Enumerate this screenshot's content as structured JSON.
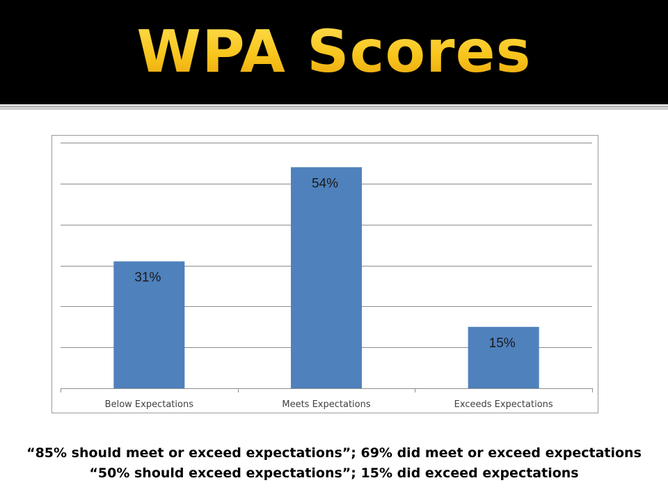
{
  "slide": {
    "title": "WPA Scores",
    "captions": [
      "“85% should meet or exceed expectations”; 69% did meet or exceed expectations",
      "“50% should exceed expectations”; 15% did exceed expectations"
    ],
    "colors": {
      "title": "#f7c21a",
      "bar": "#4f81bd"
    }
  },
  "chart_data": {
    "type": "bar",
    "title": "",
    "xlabel": "",
    "ylabel": "",
    "categories": [
      "Below Expectations",
      "Meets Expectations",
      "Exceeds Expectations"
    ],
    "values": [
      31,
      54,
      15
    ],
    "data_labels": [
      "31%",
      "54%",
      "15%"
    ],
    "ylim": [
      0,
      60
    ],
    "gridlines": true,
    "legend": "none"
  }
}
